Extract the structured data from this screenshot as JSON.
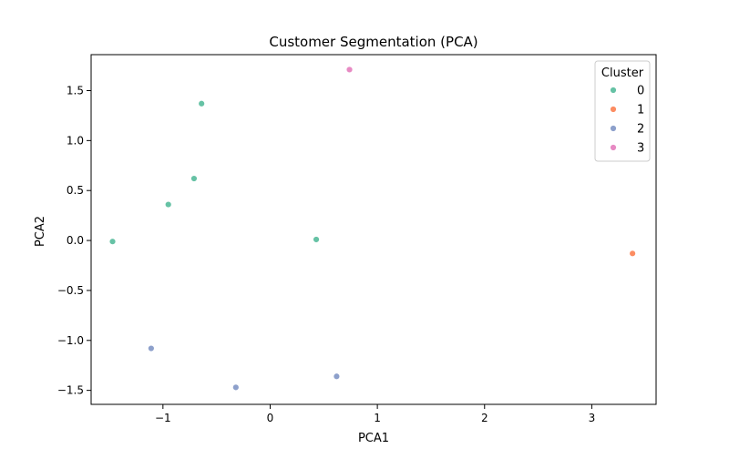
{
  "chart_data": {
    "type": "scatter",
    "title": "Customer Segmentation (PCA)",
    "xlabel": "PCA1",
    "ylabel": "PCA2",
    "xlim": [
      -1.67,
      3.6
    ],
    "ylim": [
      -1.64,
      1.86
    ],
    "x_ticks": [
      -1,
      0,
      1,
      2,
      3
    ],
    "x_tick_labels": [
      "−1",
      "0",
      "1",
      "2",
      "3"
    ],
    "y_ticks": [
      -1.5,
      -1.0,
      -0.5,
      0.0,
      0.5,
      1.0,
      1.5
    ],
    "y_tick_labels": [
      "−1.5",
      "−1.0",
      "−0.5",
      "0.0",
      "0.5",
      "1.0",
      "1.5"
    ],
    "grid": false,
    "legend": {
      "title": "Cluster",
      "placement": "top-right",
      "entries": [
        "0",
        "1",
        "2",
        "3"
      ]
    },
    "series": [
      {
        "name": "0",
        "color": "#66c2a5",
        "points": [
          {
            "x": -1.47,
            "y": -0.01
          },
          {
            "x": -0.95,
            "y": 0.36
          },
          {
            "x": -0.71,
            "y": 0.62
          },
          {
            "x": -0.64,
            "y": 1.37
          },
          {
            "x": 0.43,
            "y": 0.01
          }
        ]
      },
      {
        "name": "1",
        "color": "#fc8d62",
        "points": [
          {
            "x": 3.38,
            "y": -0.13
          }
        ]
      },
      {
        "name": "2",
        "color": "#8da0cb",
        "points": [
          {
            "x": -1.11,
            "y": -1.08
          },
          {
            "x": -0.32,
            "y": -1.47
          },
          {
            "x": 0.62,
            "y": -1.36
          }
        ]
      },
      {
        "name": "3",
        "color": "#e78ac3",
        "points": [
          {
            "x": 0.74,
            "y": 1.71
          }
        ]
      }
    ]
  }
}
